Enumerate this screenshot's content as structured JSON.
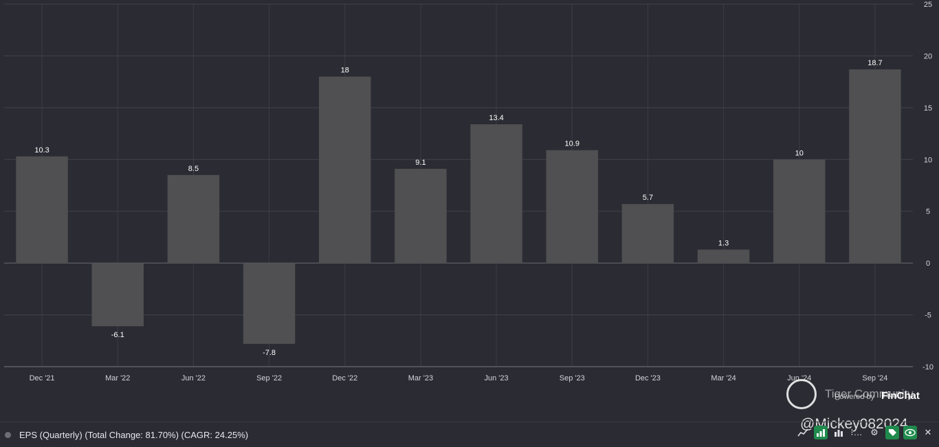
{
  "chart_data": {
    "type": "bar",
    "categories": [
      "Dec '21",
      "Mar '22",
      "Jun '22",
      "Sep '22",
      "Dec '22",
      "Mar '23",
      "Jun '23",
      "Sep '23",
      "Dec '23",
      "Mar '24",
      "Jun '24",
      "Sep '24"
    ],
    "values": [
      10.3,
      -6.1,
      8.5,
      -7.8,
      18,
      9.1,
      13.4,
      10.9,
      5.7,
      1.3,
      10,
      18.7
    ],
    "value_labels": [
      "10.3",
      "-6.1",
      "8.5",
      "-7.8",
      "18",
      "9.1",
      "13.4",
      "10.9",
      "5.7",
      "1.3",
      "10",
      "18.7"
    ],
    "ylim": [
      -10,
      25
    ],
    "yticks": [
      25,
      20,
      15,
      10,
      5,
      0,
      -5,
      -10
    ],
    "y_axis_position": "right",
    "grid": true,
    "bar_color": "#505052",
    "legend": {
      "label": "EPS (Quarterly) (Total Change: 81.70%) (CAGR: 24.25%)",
      "placement": "bottom-left",
      "color": "#6d6d73"
    }
  },
  "watermark": {
    "community": "Tiger Community",
    "powered_by": "Powered by",
    "brand": "FinChat",
    "handle": "@Mickey082024"
  },
  "toolbar": {
    "icons": [
      "trend-line-icon",
      "bar-chart-icon",
      "column-chart-icon",
      "more-icon",
      "gear-icon",
      "tag-icon",
      "eye-icon",
      "close-icon"
    ],
    "more_label": "⁝…"
  }
}
